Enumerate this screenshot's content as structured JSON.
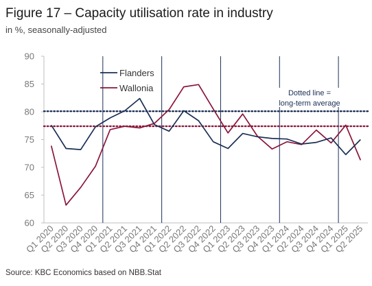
{
  "header": {
    "title": "Figure 17 – Capacity utilisation rate in industry",
    "subtitle": "in %, seasonally-adjusted"
  },
  "footer": {
    "source": "Source: KBC Economics based on NBB.Stat"
  },
  "chart_data": {
    "type": "line",
    "title": "Figure 17 – Capacity utilisation rate in industry",
    "subtitle": "in %, seasonally-adjusted",
    "xlabel": "",
    "ylabel": "",
    "ylim": [
      60,
      90
    ],
    "yticks": [
      60,
      65,
      70,
      75,
      80,
      85,
      90
    ],
    "grid": false,
    "legend_position": "top-left",
    "categories": [
      "Q1 2020",
      "Q2 2020",
      "Q3 2020",
      "Q4 2020",
      "Q1 2021",
      "Q2 2021",
      "Q3 2021",
      "Q4 2021",
      "Q1 2022",
      "Q2 2022",
      "Q3 2022",
      "Q4 2022",
      "Q1 2023",
      "Q2 2023",
      "Q3 2023",
      "Q4 2023",
      "Q1 2024",
      "Q2 2024",
      "Q3 2024",
      "Q4 2024",
      "Q1 2025",
      "Q2 2025"
    ],
    "series": [
      {
        "name": "Flanders",
        "color": "#1a2f55",
        "values": [
          77.6,
          73.4,
          73.2,
          77.3,
          78.9,
          80.2,
          82.4,
          77.7,
          76.5,
          80.2,
          78.4,
          74.6,
          73.4,
          76.1,
          75.5,
          75.2,
          75.1,
          74.2,
          74.5,
          75.3,
          72.3,
          75.0
        ],
        "long_term_average": 80.1
      },
      {
        "name": "Wallonia",
        "color": "#8a1538",
        "values": [
          73.9,
          63.2,
          66.4,
          70.2,
          76.8,
          77.4,
          77.1,
          77.9,
          80.4,
          84.5,
          84.9,
          80.5,
          76.2,
          79.6,
          75.6,
          73.3,
          74.6,
          74.1,
          76.7,
          74.4,
          77.6,
          71.3
        ],
        "long_term_average": 77.4
      }
    ],
    "year_separators_after": [
      "Q4 2020",
      "Q4 2021",
      "Q4 2022",
      "Q4 2023",
      "Q4 2024"
    ],
    "annotation": "Dotted line = long-term average",
    "annotation_lines": [
      "Dotted line =",
      "long-term average"
    ]
  }
}
